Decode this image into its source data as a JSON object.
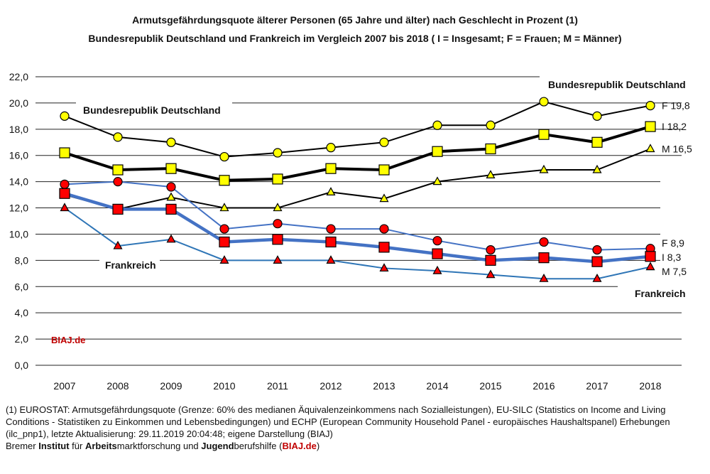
{
  "title_line1": "Armutsgefährdungsquote älterer Personen (65 Jahre und älter) nach Geschlecht in Prozent (1)",
  "title_line2": "Bundesrepublik Deutschland und Frankreich im Vergleich 2007 bis 2018 ( I = Insgesamt; F = Frauen; M = Männer)",
  "footnote_lines": [
    "(1) EUROSTAT: Armutsgefährdungsquote (Grenze: 60% des medianen Äquivalenzeinkommens nach Sozialleistungen), EU-SILC (Statistics on Income and Living",
    "Conditions - Statistiken zu Einkommen und Lebensbedingungen) und ECHP (European Community Household Panel - europäisches Haushaltspanel) Erhebungen",
    "(ilc_pnp1), letzte Aktualisierung: 29.11.2019  20:04:48; eigene Darstellung (BIAJ)"
  ],
  "credit": {
    "p1": "Bremer ",
    "b1": "Institut",
    "p2": " für ",
    "b2": "Arbeits",
    "p3": "marktforschung und ",
    "b3": "Jugend",
    "p4": "berufshilfe (",
    "link": "BIAJ.de",
    "p5": ")"
  },
  "watermark": "BIAJ.de",
  "colors": {
    "de_line": "#000000",
    "fr_line": "#4472c4",
    "fr_m_line": "#2e75b6",
    "de_marker": "#ffff00",
    "fr_marker": "#ff0000",
    "brand": "#c00000"
  },
  "chart_data": {
    "type": "line",
    "categories": [
      "2007",
      "2008",
      "2009",
      "2010",
      "2011",
      "2012",
      "2013",
      "2014",
      "2015",
      "2016",
      "2017",
      "2018"
    ],
    "ylim": [
      0,
      22
    ],
    "yticks": [
      "0,0",
      "2,0",
      "4,0",
      "6,0",
      "8,0",
      "10,0",
      "12,0",
      "14,0",
      "16,0",
      "18,0",
      "20,0",
      "22,0"
    ],
    "grid": true,
    "group_labels": [
      "Bundesrepublik Deutschland",
      "Frankreich"
    ],
    "series": [
      {
        "name": "F 19,8",
        "group": "DE",
        "marker": "circle",
        "values": [
          19.0,
          17.4,
          17.0,
          15.9,
          16.2,
          16.6,
          17.0,
          18.3,
          18.3,
          20.1,
          19.0,
          19.8
        ]
      },
      {
        "name": "I 18,2",
        "group": "DE",
        "marker": "square",
        "values": [
          16.2,
          14.9,
          15.0,
          14.1,
          14.2,
          15.0,
          14.9,
          16.3,
          16.5,
          17.6,
          17.0,
          18.2
        ]
      },
      {
        "name": "M 16,5",
        "group": "DE",
        "marker": "triangle",
        "values": [
          13.0,
          11.9,
          12.8,
          12.0,
          12.0,
          13.2,
          12.7,
          14.0,
          14.5,
          14.9,
          14.9,
          16.5
        ]
      },
      {
        "name": "F 8,9",
        "group": "FR",
        "marker": "circle",
        "values": [
          13.8,
          14.0,
          13.6,
          10.4,
          10.8,
          10.4,
          10.4,
          9.5,
          8.8,
          9.4,
          8.8,
          8.9
        ]
      },
      {
        "name": "I 8,3",
        "group": "FR",
        "marker": "square",
        "values": [
          13.1,
          11.9,
          11.9,
          9.4,
          9.6,
          9.4,
          9.0,
          8.5,
          8.0,
          8.2,
          7.9,
          8.3
        ]
      },
      {
        "name": "M 7,5",
        "group": "FR",
        "marker": "triangle",
        "values": [
          12.0,
          9.1,
          9.6,
          8.0,
          8.0,
          8.0,
          7.4,
          7.2,
          6.9,
          6.6,
          6.6,
          7.5
        ]
      }
    ]
  }
}
